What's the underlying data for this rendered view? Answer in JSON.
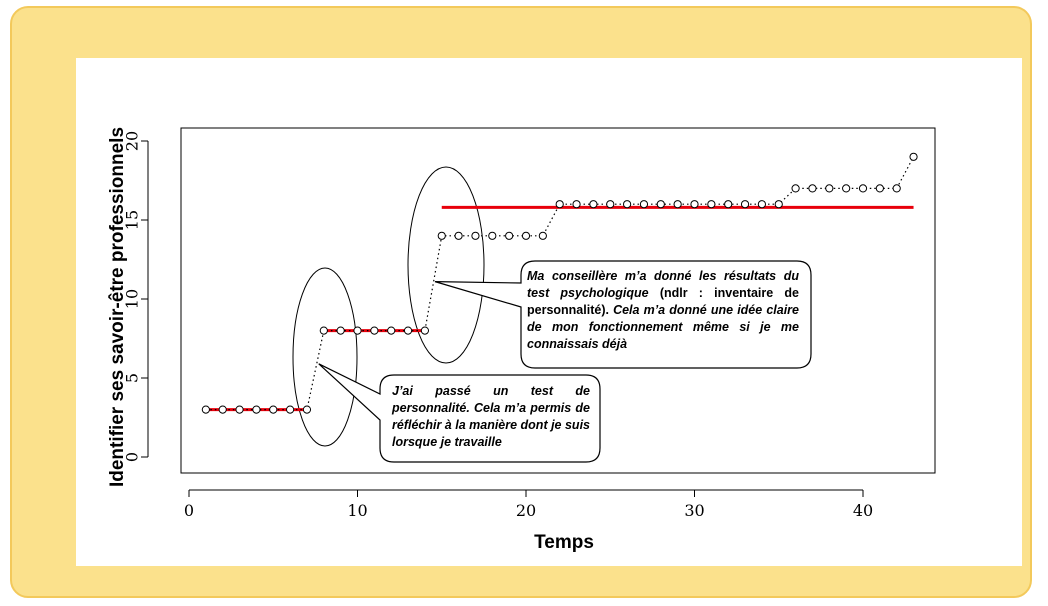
{
  "chart_data": {
    "type": "line",
    "xlabel": "Temps",
    "ylabel": "Identifier ses savoir-être professionnels",
    "xlim": [
      0,
      43
    ],
    "ylim": [
      0,
      20
    ],
    "x_ticks": [
      "0",
      "10",
      "20",
      "30",
      "40"
    ],
    "y_ticks": [
      "0",
      "5",
      "10",
      "15",
      "20"
    ],
    "grid": false,
    "series": [
      {
        "style": "dotted line with open circle markers",
        "color": "#000000",
        "x": [
          1,
          2,
          3,
          4,
          5,
          6,
          7,
          8,
          9,
          10,
          11,
          12,
          13,
          14,
          15,
          16,
          17,
          18,
          19,
          20,
          21,
          22,
          23,
          24,
          25,
          26,
          27,
          28,
          29,
          30,
          31,
          32,
          33,
          34,
          35,
          36,
          37,
          38,
          39,
          40,
          41,
          42,
          43
        ],
        "y": [
          3,
          3,
          3,
          3,
          3,
          3,
          3,
          8,
          8,
          8,
          8,
          8,
          8,
          8,
          14,
          14,
          14,
          14,
          14,
          14,
          14,
          16,
          16,
          16,
          16,
          16,
          16,
          16,
          16,
          16,
          16,
          16,
          16,
          16,
          16,
          17,
          17,
          17,
          17,
          17,
          17,
          17,
          19
        ]
      }
    ],
    "levels": [
      {
        "color": "#e8000b",
        "x_start": 1,
        "x_end": 7,
        "y": 3
      },
      {
        "color": "#e8000b",
        "x_start": 8,
        "x_end": 14,
        "y": 8
      },
      {
        "color": "#e8000b",
        "x_start": 15,
        "x_end": 43,
        "y": 15.8
      }
    ],
    "annotations": [
      {
        "segments": [
          {
            "text": "J’ai passé un test de personnalité. Cela m’a permis de réfléchir à la manière dont je suis lorsque je travaille",
            "italic": true
          }
        ],
        "points_to": {
          "x": 7.7,
          "y": 5.9
        }
      },
      {
        "segments": [
          {
            "text": "Ma conseillère m’a donné les résultats du test psychologique",
            "italic": true
          },
          {
            "text": " (ndlr : inventaire de personnalité). ",
            "italic": false
          },
          {
            "text": "Cela m’a donné une idée claire de mon fonctionnement même si je me connaissais déjà",
            "italic": true
          }
        ],
        "points_to": {
          "x": 14.6,
          "y": 11.1
        }
      }
    ]
  }
}
